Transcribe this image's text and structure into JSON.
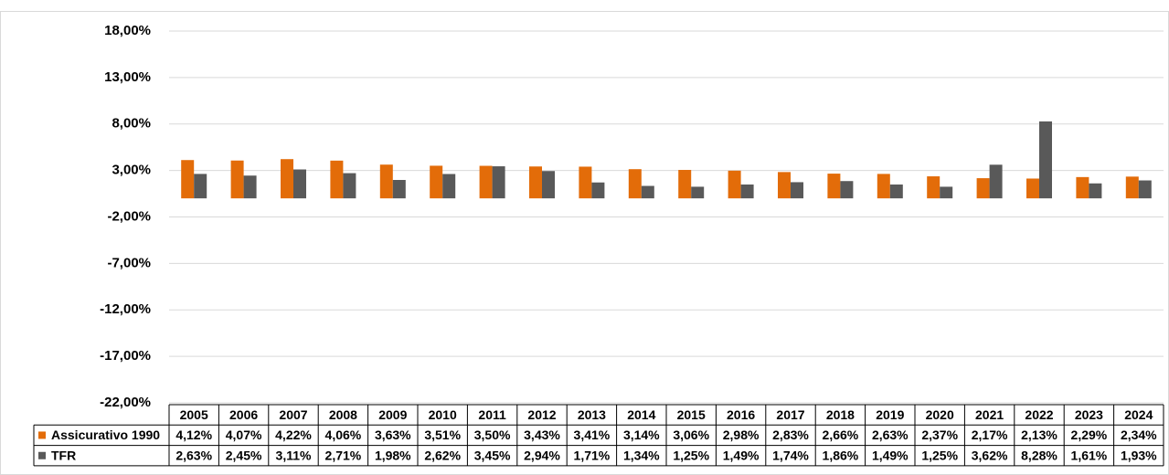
{
  "chart_data": {
    "type": "bar",
    "categories": [
      "2005",
      "2006",
      "2007",
      "2008",
      "2009",
      "2010",
      "2011",
      "2012",
      "2013",
      "2014",
      "2015",
      "2016",
      "2017",
      "2018",
      "2019",
      "2020",
      "2021",
      "2022",
      "2023",
      "2024"
    ],
    "series": [
      {
        "name": "Assicurativo 1990",
        "color": "#e36c09",
        "values": [
          4.12,
          4.07,
          4.22,
          4.06,
          3.63,
          3.51,
          3.5,
          3.43,
          3.41,
          3.14,
          3.06,
          2.98,
          2.83,
          2.66,
          2.63,
          2.37,
          2.17,
          2.13,
          2.29,
          2.34
        ],
        "value_labels": [
          "4,12%",
          "4,07%",
          "4,22%",
          "4,06%",
          "3,63%",
          "3,51%",
          "3,50%",
          "3,43%",
          "3,41%",
          "3,14%",
          "3,06%",
          "2,98%",
          "2,83%",
          "2,66%",
          "2,63%",
          "2,37%",
          "2,17%",
          "2,13%",
          "2,29%",
          "2,34%"
        ]
      },
      {
        "name": "TFR",
        "color": "#595959",
        "values": [
          2.63,
          2.45,
          3.11,
          2.71,
          1.98,
          2.62,
          3.45,
          2.94,
          1.71,
          1.34,
          1.25,
          1.49,
          1.74,
          1.86,
          1.49,
          1.25,
          3.62,
          8.28,
          1.61,
          1.93
        ],
        "value_labels": [
          "2,63%",
          "2,45%",
          "3,11%",
          "2,71%",
          "1,98%",
          "2,62%",
          "3,45%",
          "2,94%",
          "1,71%",
          "1,34%",
          "1,25%",
          "1,49%",
          "1,74%",
          "1,86%",
          "1,49%",
          "1,25%",
          "3,62%",
          "8,28%",
          "1,61%",
          "1,93%"
        ]
      }
    ],
    "ylim": [
      -22,
      18
    ],
    "yticks": [
      {
        "value": -22,
        "label": "-22,00%"
      },
      {
        "value": -17,
        "label": "-17,00%"
      },
      {
        "value": -12,
        "label": "-12,00%"
      },
      {
        "value": -7,
        "label": "-7,00%"
      },
      {
        "value": -2,
        "label": "-2,00%"
      },
      {
        "value": 3,
        "label": "3,00%"
      },
      {
        "value": 8,
        "label": "8,00%"
      },
      {
        "value": 13,
        "label": "13,00%"
      },
      {
        "value": 18,
        "label": "18,00%"
      }
    ],
    "grid": true
  }
}
